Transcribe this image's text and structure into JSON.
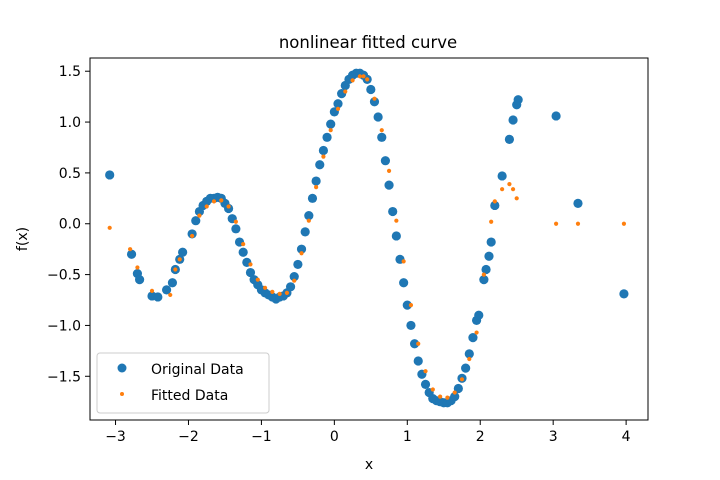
{
  "chart_data": {
    "type": "scatter",
    "title": "nonlinear fitted curve",
    "xlabel": "x",
    "ylabel": "f(x)",
    "xlim": [
      -3.35,
      4.3
    ],
    "ylim": [
      -1.93,
      1.63
    ],
    "xticks": [
      -3,
      -2,
      -1,
      0,
      1,
      2,
      3,
      4
    ],
    "xtick_labels": [
      "−3",
      "−2",
      "−1",
      "0",
      "1",
      "2",
      "3",
      "4"
    ],
    "yticks": [
      -1.5,
      -1.0,
      -0.5,
      0.0,
      0.5,
      1.0,
      1.5
    ],
    "ytick_labels": [
      "−1.5",
      "−1.0",
      "−0.5",
      "0.0",
      "0.5",
      "1.0",
      "1.5"
    ],
    "legend": {
      "position": "lower-left",
      "entries": [
        "Original Data",
        "Fitted Data"
      ]
    },
    "colors": {
      "original": "#1f77b4",
      "fitted": "#ff7f0e"
    },
    "series": [
      {
        "name": "Original Data",
        "marker": "large-circle",
        "x": [
          -3.08,
          -2.78,
          -2.7,
          -2.67,
          -2.5,
          -2.42,
          -2.3,
          -2.22,
          -2.18,
          -2.12,
          -2.08,
          -1.95,
          -1.9,
          -1.85,
          -1.8,
          -1.75,
          -1.7,
          -1.65,
          -1.6,
          -1.55,
          -1.5,
          -1.45,
          -1.4,
          -1.35,
          -1.3,
          -1.25,
          -1.2,
          -1.15,
          -1.1,
          -1.05,
          -1.0,
          -0.95,
          -0.9,
          -0.85,
          -0.8,
          -0.75,
          -0.7,
          -0.65,
          -0.6,
          -0.55,
          -0.5,
          -0.45,
          -0.4,
          -0.35,
          -0.3,
          -0.25,
          -0.2,
          -0.15,
          -0.1,
          -0.05,
          0.0,
          0.05,
          0.1,
          0.15,
          0.2,
          0.25,
          0.3,
          0.35,
          0.4,
          0.45,
          0.5,
          0.55,
          0.6,
          0.65,
          0.7,
          0.75,
          0.8,
          0.85,
          0.9,
          0.95,
          1.0,
          1.05,
          1.1,
          1.15,
          1.2,
          1.25,
          1.3,
          1.35,
          1.4,
          1.45,
          1.5,
          1.55,
          1.6,
          1.65,
          1.7,
          1.75,
          1.8,
          1.85,
          1.9,
          1.95,
          1.98,
          2.05,
          2.08,
          2.12,
          2.15,
          2.2,
          2.3,
          2.4,
          2.45,
          2.5,
          2.52,
          3.04,
          3.34,
          3.97
        ],
        "y": [
          0.48,
          -0.3,
          -0.49,
          -0.55,
          -0.71,
          -0.72,
          -0.65,
          -0.58,
          -0.45,
          -0.35,
          -0.28,
          -0.1,
          0.03,
          0.12,
          0.18,
          0.22,
          0.25,
          0.25,
          0.26,
          0.25,
          0.2,
          0.15,
          0.05,
          -0.05,
          -0.18,
          -0.28,
          -0.38,
          -0.48,
          -0.55,
          -0.6,
          -0.65,
          -0.68,
          -0.7,
          -0.72,
          -0.74,
          -0.72,
          -0.71,
          -0.68,
          -0.62,
          -0.52,
          -0.4,
          -0.25,
          -0.08,
          0.08,
          0.25,
          0.42,
          0.58,
          0.72,
          0.85,
          0.98,
          1.1,
          1.18,
          1.28,
          1.36,
          1.42,
          1.46,
          1.48,
          1.48,
          1.46,
          1.42,
          1.32,
          1.2,
          1.05,
          0.85,
          0.62,
          0.38,
          0.12,
          -0.12,
          -0.35,
          -0.58,
          -0.8,
          -1.0,
          -1.18,
          -1.35,
          -1.48,
          -1.58,
          -1.66,
          -1.72,
          -1.74,
          -1.75,
          -1.76,
          -1.76,
          -1.74,
          -1.7,
          -1.62,
          -1.52,
          -1.42,
          -1.28,
          -1.12,
          -0.95,
          -0.9,
          -0.55,
          -0.45,
          -0.32,
          -0.18,
          0.18,
          0.47,
          0.83,
          1.02,
          1.17,
          1.22,
          1.06,
          0.2,
          -0.69
        ]
      },
      {
        "name": "Fitted Data",
        "marker": "small-circle",
        "x": [
          -3.08,
          -2.8,
          -2.7,
          -2.5,
          -2.25,
          -2.18,
          -2.12,
          -1.95,
          -1.85,
          -1.75,
          -1.65,
          -1.55,
          -1.45,
          -1.35,
          -1.25,
          -1.15,
          -1.05,
          -0.95,
          -0.85,
          -0.75,
          -0.65,
          -0.55,
          -0.45,
          -0.35,
          -0.25,
          -0.15,
          -0.05,
          0.05,
          0.15,
          0.25,
          0.35,
          0.4,
          0.45,
          0.55,
          0.65,
          0.75,
          0.85,
          0.95,
          1.05,
          1.15,
          1.25,
          1.35,
          1.45,
          1.55,
          1.65,
          1.75,
          1.85,
          1.95,
          2.05,
          2.15,
          2.2,
          2.3,
          2.4,
          2.45,
          2.5,
          3.04,
          3.34,
          3.97
        ],
        "y": [
          -0.04,
          -0.25,
          -0.43,
          -0.66,
          -0.7,
          -0.45,
          -0.35,
          -0.12,
          0.08,
          0.17,
          0.22,
          0.23,
          0.17,
          0.02,
          -0.2,
          -0.4,
          -0.55,
          -0.63,
          -0.67,
          -0.69,
          -0.68,
          -0.56,
          -0.29,
          0.03,
          0.36,
          0.66,
          0.92,
          1.13,
          1.3,
          1.41,
          1.45,
          1.45,
          1.42,
          1.23,
          0.92,
          0.52,
          0.03,
          -0.37,
          -0.8,
          -1.18,
          -1.45,
          -1.63,
          -1.7,
          -1.71,
          -1.66,
          -1.53,
          -1.33,
          -1.07,
          -0.5,
          0.02,
          0.22,
          0.34,
          0.39,
          0.34,
          0.25,
          0.0,
          0.0,
          0.0
        ]
      }
    ]
  }
}
